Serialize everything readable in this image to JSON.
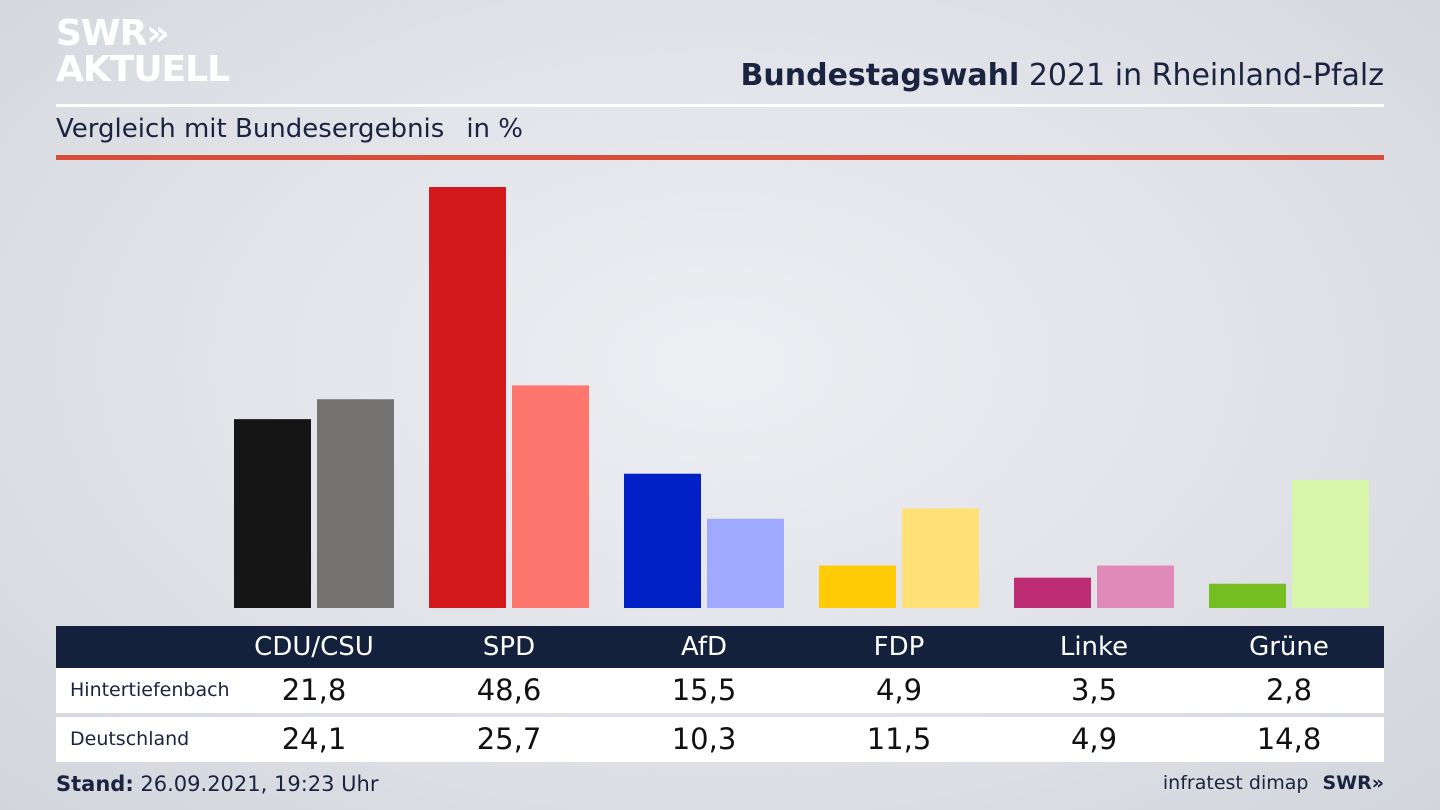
{
  "logo": {
    "line1": "SWR",
    "chevrons": "»",
    "line2": "AKTUELL"
  },
  "header": {
    "title_bold": "Bundestagswahl",
    "title_rest": " 2021 in Rheinland-Pfalz",
    "subtitle": "Vergleich mit Bundesergebnis",
    "unit": "in %"
  },
  "chart_data": {
    "type": "bar",
    "categories": [
      "CDU/CSU",
      "SPD",
      "AfD",
      "FDP",
      "Linke",
      "Grüne"
    ],
    "series": [
      {
        "name": "Hintertiefenbach",
        "values": [
          21.8,
          48.6,
          15.5,
          4.9,
          3.5,
          2.8
        ]
      },
      {
        "name": "Deutschland",
        "values": [
          24.1,
          25.7,
          10.3,
          11.5,
          4.9,
          14.8
        ]
      }
    ],
    "display_values": [
      [
        "21,8",
        "48,6",
        "15,5",
        "4,9",
        "3,5",
        "2,8"
      ],
      [
        "24,1",
        "25,7",
        "10,3",
        "11,5",
        "4,9",
        "14,8"
      ]
    ],
    "colors": [
      [
        "#151515",
        "#747371"
      ],
      [
        "#d4191c",
        "#ff766f"
      ],
      [
        "#0121c6",
        "#9ea9ff"
      ],
      [
        "#ffcb05",
        "#ffe177"
      ],
      [
        "#be2c76",
        "#e08ab9"
      ],
      [
        "#74be22",
        "#d7f6a9"
      ]
    ],
    "ylim": [
      0,
      48.6
    ],
    "grid": false,
    "legend": "table-below"
  },
  "footer": {
    "stand_label": "Stand:",
    "stand_value": " 26.09.2021, 19:23 Uhr",
    "source": "infratest dimap",
    "brand": "SWR»"
  }
}
